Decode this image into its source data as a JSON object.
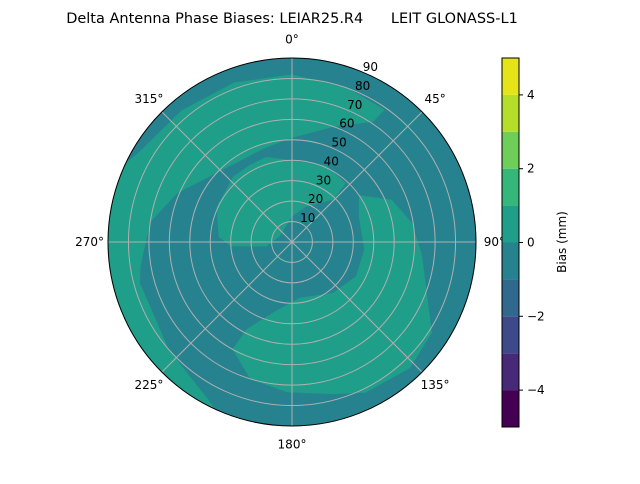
{
  "chart_data": {
    "type": "polar-contour",
    "title": "Delta Antenna Phase Biases: LEIAR25.R4      LEIT GLONASS-L1",
    "angular_axis": {
      "direction": "clockwise",
      "zero": "north",
      "tick_labels": [
        "0°",
        "45°",
        "90°",
        "135°",
        "180°",
        "225°",
        "270°",
        "315°"
      ],
      "tick_values": [
        0,
        45,
        90,
        135,
        180,
        225,
        270,
        315
      ]
    },
    "radial_axis": {
      "range": [
        0,
        90
      ],
      "tick_values": [
        10,
        20,
        30,
        40,
        50,
        60,
        70,
        80,
        90
      ],
      "tick_labels": [
        "10",
        "20",
        "30",
        "40",
        "50",
        "60",
        "70",
        "80",
        "90"
      ],
      "label_azimuth": 22.5
    },
    "grid": true,
    "grid_color": "#b0b0b0",
    "colorbar": {
      "label": "Bias (mm)",
      "range": [
        -5,
        5
      ],
      "levels": [
        -5,
        -4,
        -3,
        -2,
        -1,
        0,
        1,
        2,
        3,
        4,
        5
      ],
      "colors": [
        "#440154",
        "#482878",
        "#3e4989",
        "#31688e",
        "#26828e",
        "#1f9e89",
        "#35b779",
        "#6ece58",
        "#b5de2b",
        "#e5e419"
      ],
      "tick_values": [
        -4,
        -2,
        0,
        2,
        4
      ],
      "tick_labels": [
        "−4",
        "−2",
        "0",
        "2",
        "4"
      ],
      "colormap": "viridis"
    },
    "background_level_range": [
      -1,
      0
    ],
    "background_color": "#26828e",
    "regions": [
      {
        "level_range": [
          0,
          1
        ],
        "color": "#1f9e89",
        "points_az_zen": [
          [
            200,
            95
          ],
          [
            230,
            95
          ],
          [
            260,
            95
          ],
          [
            290,
            95
          ],
          [
            300,
            87
          ],
          [
            320,
            84
          ],
          [
            340,
            83
          ],
          [
            0,
            82
          ],
          [
            20,
            80
          ],
          [
            35,
            79
          ],
          [
            34,
            71
          ],
          [
            20,
            60
          ],
          [
            0,
            51
          ],
          [
            345,
            48
          ],
          [
            329,
            47
          ],
          [
            293,
            61
          ],
          [
            278,
            70
          ],
          [
            261,
            75
          ],
          [
            255,
            77
          ],
          [
            229,
            80
          ],
          [
            207,
            88
          ]
        ]
      },
      {
        "level_range": [
          0,
          1
        ],
        "color": "#1f9e89",
        "points_az_zen": [
          [
            0,
            40
          ],
          [
            24,
            41
          ],
          [
            42.6,
            39
          ],
          [
            44,
            28.7
          ],
          [
            22,
            18.7
          ],
          [
            0,
            12.5
          ],
          [
            295,
            6.6
          ],
          [
            260,
            12.7
          ],
          [
            266,
            30
          ],
          [
            274,
            36
          ],
          [
            295,
            40.7
          ],
          [
            318,
            43
          ],
          [
            331,
            43
          ],
          [
            343,
            43.5
          ]
        ]
      },
      {
        "level_range": [
          0,
          1
        ],
        "color": "#1f9e89",
        "points_az_zen": [
          [
            55,
            40
          ],
          [
            67,
            53
          ],
          [
            81,
            59.5
          ],
          [
            96,
            64
          ],
          [
            123,
            81.6
          ],
          [
            137,
            84.5
          ],
          [
            154,
            82
          ],
          [
            165,
            77
          ],
          [
            182,
            73.5
          ],
          [
            197,
            70
          ],
          [
            209,
            60
          ],
          [
            207.5,
            48
          ],
          [
            195,
            35.7
          ],
          [
            172,
            27.5
          ],
          [
            141,
            32
          ],
          [
            118,
            35.5
          ],
          [
            96,
            35.5
          ],
          [
            69,
            35
          ]
        ]
      }
    ]
  }
}
